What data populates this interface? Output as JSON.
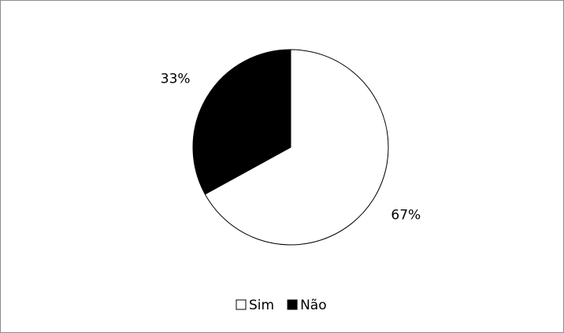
{
  "chart_data": {
    "type": "pie",
    "categories": [
      "Sim",
      "Não"
    ],
    "values": [
      67,
      33
    ],
    "value_labels": [
      "67%",
      "33%"
    ],
    "colors": [
      "#ffffff",
      "#000000"
    ],
    "legend": "bottom"
  }
}
